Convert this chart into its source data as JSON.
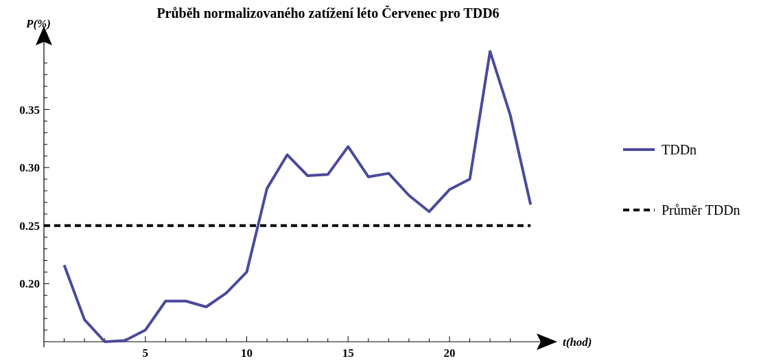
{
  "chart_data": {
    "type": "line",
    "title": "Průběh normalizovaného zatížení léto Červenec pro TDD6",
    "xlabel": "t(hod)",
    "ylabel": "P(%)",
    "x": [
      1,
      2,
      3,
      4,
      5,
      6,
      7,
      8,
      9,
      10,
      11,
      12,
      13,
      14,
      15,
      16,
      17,
      18,
      19,
      20,
      21,
      22,
      23,
      24
    ],
    "series": [
      {
        "name": "TDDn",
        "color": "#4a4a9c",
        "values": [
          0.216,
          0.169,
          0.15,
          0.151,
          0.16,
          0.185,
          0.185,
          0.18,
          0.192,
          0.21,
          0.282,
          0.311,
          0.293,
          0.294,
          0.318,
          0.292,
          0.295,
          0.276,
          0.262,
          0.281,
          0.29,
          0.4,
          0.345,
          0.268
        ]
      }
    ],
    "ref_lines": [
      {
        "axis": "y",
        "value": 0.25,
        "label": "Průměr TDDn",
        "color": "#000000",
        "line_style": "dashed"
      }
    ],
    "xlim": [
      0,
      24.5
    ],
    "ylim": [
      0.15,
      0.41
    ],
    "xticks": [
      {
        "value": 1,
        "label": null
      },
      {
        "value": 2,
        "label": null
      },
      {
        "value": 3,
        "label": null
      },
      {
        "value": 4,
        "label": null
      },
      5,
      {
        "value": 6,
        "label": null
      },
      {
        "value": 7,
        "label": null
      },
      {
        "value": 8,
        "label": null
      },
      {
        "value": 9,
        "label": null
      },
      10,
      {
        "value": 11,
        "label": null
      },
      {
        "value": 12,
        "label": null
      },
      {
        "value": 13,
        "label": null
      },
      {
        "value": 14,
        "label": null
      },
      15,
      {
        "value": 16,
        "label": null
      },
      {
        "value": 17,
        "label": null
      },
      {
        "value": 18,
        "label": null
      },
      {
        "value": 19,
        "label": null
      },
      20,
      {
        "value": 21,
        "label": null
      },
      {
        "value": 22,
        "label": null
      },
      {
        "value": 23,
        "label": null
      }
    ],
    "yticks": [
      {
        "value": 0.16,
        "label": null
      },
      {
        "value": 0.17,
        "label": null
      },
      {
        "value": 0.18,
        "label": null
      },
      {
        "value": 0.19,
        "label": null
      },
      {
        "value": 0.2,
        "label": "0.20"
      },
      {
        "value": 0.21,
        "label": null
      },
      {
        "value": 0.22,
        "label": null
      },
      {
        "value": 0.23,
        "label": null
      },
      {
        "value": 0.24,
        "label": null
      },
      {
        "value": 0.25,
        "label": "0.25"
      },
      {
        "value": 0.26,
        "label": null
      },
      {
        "value": 0.27,
        "label": null
      },
      {
        "value": 0.28,
        "label": null
      },
      {
        "value": 0.29,
        "label": null
      },
      {
        "value": 0.3,
        "label": "0.30"
      },
      {
        "value": 0.31,
        "label": null
      },
      {
        "value": 0.32,
        "label": null
      },
      {
        "value": 0.33,
        "label": null
      },
      {
        "value": 0.34,
        "label": null
      },
      {
        "value": 0.35,
        "label": "0.35"
      },
      {
        "value": 0.36,
        "label": null
      },
      {
        "value": 0.37,
        "label": null
      },
      {
        "value": 0.38,
        "label": null
      },
      {
        "value": 0.39,
        "label": null
      }
    ],
    "grid": false,
    "legend": "right",
    "marker": "none",
    "line_style": "solid"
  }
}
